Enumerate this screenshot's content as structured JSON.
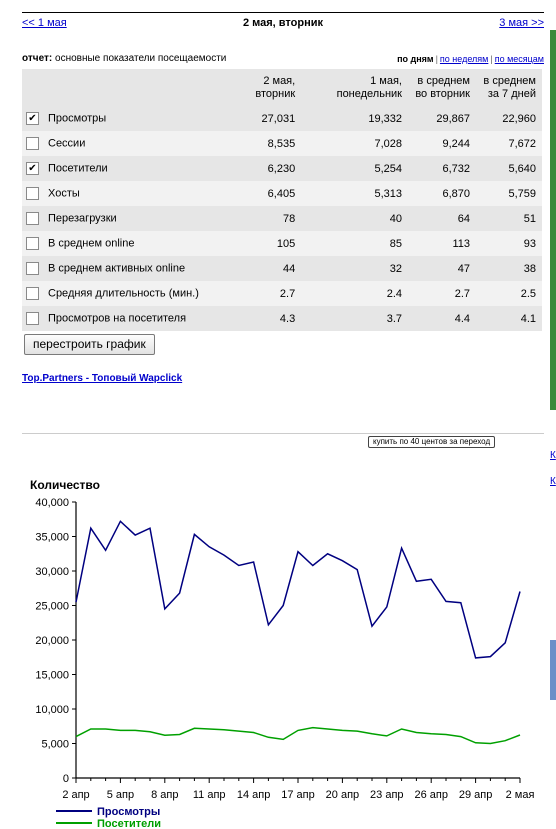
{
  "nav": {
    "prev": "<< 1 мая",
    "current": "2 мая, вторник",
    "next": "3 мая >>"
  },
  "report": {
    "label": "отчет:",
    "title": "основные показатели посещаемости",
    "modes": [
      "по дням",
      "по неделям",
      "по месяцам"
    ]
  },
  "table": {
    "headers": [
      "2 мая, вторник",
      "1 мая, понедельник",
      "в среднем во вторник",
      "в среднем за 7 дней"
    ],
    "rows": [
      {
        "label": "Просмотры",
        "checked": true,
        "values": [
          "27,031",
          "19,332",
          "29,867",
          "22,960"
        ]
      },
      {
        "label": "Сессии",
        "checked": false,
        "values": [
          "8,535",
          "7,028",
          "9,244",
          "7,672"
        ]
      },
      {
        "label": "Посетители",
        "checked": true,
        "values": [
          "6,230",
          "5,254",
          "6,732",
          "5,640"
        ]
      },
      {
        "label": "Хосты",
        "checked": false,
        "values": [
          "6,405",
          "5,313",
          "6,870",
          "5,759"
        ]
      },
      {
        "label": "Перезагрузки",
        "checked": false,
        "values": [
          "78",
          "40",
          "64",
          "51"
        ]
      },
      {
        "label": "В среднем online",
        "checked": false,
        "values": [
          "105",
          "85",
          "113",
          "93"
        ]
      },
      {
        "label": "В среднем активных online",
        "checked": false,
        "values": [
          "44",
          "32",
          "47",
          "38"
        ]
      },
      {
        "label": "Средняя длительность (мин.)",
        "checked": false,
        "values": [
          "2.7",
          "2.4",
          "2.7",
          "2.5"
        ]
      },
      {
        "label": "Просмотров на посетителя",
        "checked": false,
        "values": [
          "4.3",
          "3.7",
          "4.4",
          "4.1"
        ]
      }
    ]
  },
  "rebuild_button": "перестроить график",
  "promo_link": "Top.Partners - Топовый Wapclick",
  "buy_button": "купить по 40 центов за переход",
  "edge_links": [
    "К",
    "К"
  ],
  "colors": {
    "views": "#000080",
    "visitors": "#00a000",
    "link": "#0000cc"
  },
  "chart_data": {
    "type": "line",
    "ylabel": "Количество",
    "ylim": [
      0,
      40000
    ],
    "yticks": [
      "0",
      "5,000",
      "10,000",
      "15,000",
      "20,000",
      "25,000",
      "30,000",
      "35,000",
      "40,000"
    ],
    "xtick_labels": [
      "2 апр",
      "5 апр",
      "8 апр",
      "11 апр",
      "14 апр",
      "17 апр",
      "20 апр",
      "23 апр",
      "26 апр",
      "29 апр",
      "2 мая"
    ],
    "series": [
      {
        "name": "Просмотры",
        "color": "#000080",
        "values": [
          25500,
          36200,
          33000,
          37200,
          35200,
          36200,
          24500,
          26800,
          35300,
          33500,
          32300,
          30800,
          31300,
          22200,
          25000,
          32800,
          30800,
          32500,
          31500,
          30200,
          22000,
          24800,
          33300,
          28500,
          28800,
          25600,
          25400,
          17400,
          17600,
          19600,
          27031
        ]
      },
      {
        "name": "Посетители",
        "color": "#00a000",
        "values": [
          6000,
          7100,
          7100,
          6900,
          6900,
          6700,
          6200,
          6300,
          7200,
          7100,
          7000,
          6800,
          6600,
          5900,
          5600,
          6900,
          7300,
          7100,
          6900,
          6800,
          6400,
          6100,
          7100,
          6600,
          6400,
          6300,
          6000,
          5100,
          5000,
          5400,
          6230
        ]
      }
    ]
  }
}
